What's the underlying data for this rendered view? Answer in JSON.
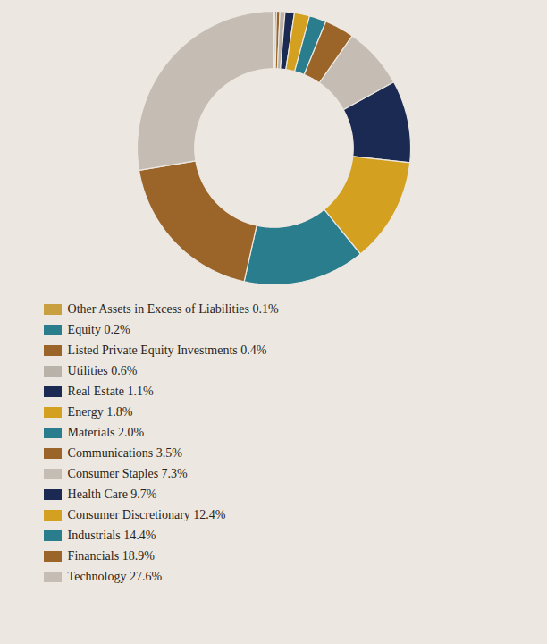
{
  "chart_data": {
    "type": "donut",
    "categories": [
      "Other Assets in Excess of Liabilities 0.1%",
      "Equity 0.2%",
      "Listed Private Equity Investments 0.4%",
      "Utilities 0.6%",
      "Real Estate 1.1%",
      "Energy 1.8%",
      "Materials 2.0%",
      "Communications 3.5%",
      "Consumer Staples 7.3%",
      "Health Care 9.7%",
      "Consumer Discretionary 12.4%",
      "Industrials 14.4%",
      "Financials 18.9%",
      "Technology 27.6%"
    ],
    "values": [
      0.1,
      0.2,
      0.4,
      0.6,
      1.1,
      1.8,
      2.0,
      3.5,
      7.3,
      9.7,
      12.4,
      14.4,
      18.9,
      27.6
    ],
    "colors": [
      "#c9a040",
      "#2a7d8c",
      "#9b6428",
      "#b8b2a8",
      "#1b2a52",
      "#d4a020",
      "#2a7d8c",
      "#9b6428",
      "#c5bdb4",
      "#1b2a52",
      "#d4a020",
      "#2a7d8c",
      "#9b6428",
      "#c5bdb4"
    ],
    "legend": "bottom"
  }
}
